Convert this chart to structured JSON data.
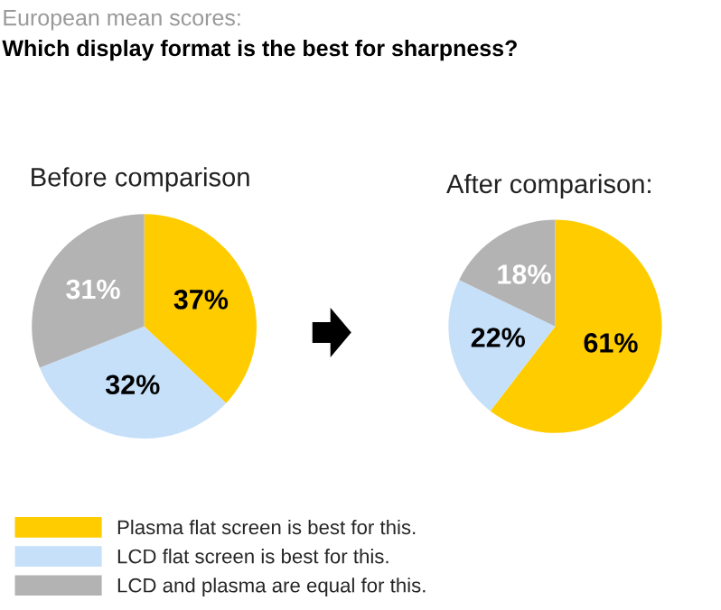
{
  "chart_data": [
    {
      "type": "pie",
      "title": "Before comparison",
      "annotations": [
        "European mean scores:",
        "Which display format is the best for sharpness?"
      ],
      "categories": [
        "Plasma flat screen is best for this.",
        "LCD flat screen is best for this.",
        "LCD and plasma are equal for this."
      ],
      "values": [
        37,
        32,
        31
      ],
      "value_labels": [
        "37%",
        "32%",
        "31%"
      ],
      "colors": [
        "#ffcc00",
        "#c6e0fa",
        "#b3b3b3"
      ],
      "legend": "bottom"
    },
    {
      "type": "pie",
      "title": "After comparison:",
      "categories": [
        null,
        null,
        null
      ],
      "values": [
        61,
        22,
        18
      ],
      "value_labels": [
        "61%",
        "22%",
        "18%"
      ],
      "colors": [
        "#ffcc00",
        "#c6e0fa",
        "#b3b3b3"
      ],
      "legend": false
    }
  ]
}
